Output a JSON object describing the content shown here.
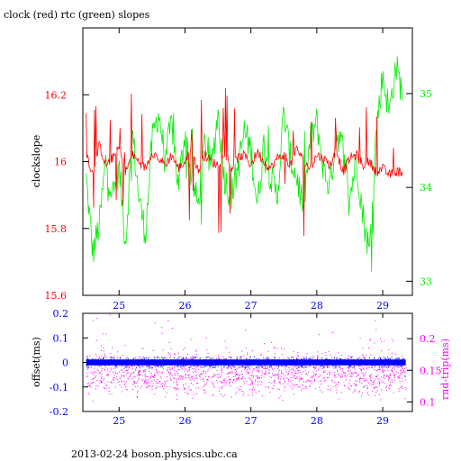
{
  "title": "clock (red) rtc (green) slopes",
  "footer": "2013-02-24 boson.physics.ubc.ca",
  "colors": {
    "red": "#ff0000",
    "green": "#00ee00",
    "blue": "#0000ff",
    "magenta": "#ff00ff",
    "axis": "#000000"
  },
  "chart_data": [
    {
      "type": "line",
      "panel": "top",
      "xlim": [
        24.45,
        29.45
      ],
      "x_ticks": [
        25,
        26,
        27,
        28,
        29
      ],
      "x_tick_labels": [
        "25",
        "26",
        "27",
        "28",
        "29"
      ],
      "y_left": {
        "label": "clockslope",
        "lim": [
          15.6,
          16.4
        ],
        "ticks": [
          15.6,
          15.8,
          16,
          16.2
        ],
        "tick_labels": [
          "15.6",
          "15.8",
          "16",
          "16.2"
        ],
        "color": "#ff0000"
      },
      "y_right": {
        "label": "",
        "lim": [
          32.85,
          35.7
        ],
        "ticks": [
          33,
          34,
          35
        ],
        "tick_labels": [
          "33",
          "34",
          "35"
        ],
        "color": "#00ee00"
      },
      "series": [
        {
          "axis": "right",
          "color": "#00ee00",
          "x": [
            24.5,
            24.6,
            24.7,
            24.8,
            24.9,
            25.0,
            25.1,
            25.2,
            25.3,
            25.4,
            25.5,
            25.6,
            25.7,
            25.8,
            25.9,
            26.0,
            26.1,
            26.2,
            26.3,
            26.4,
            26.5,
            26.6,
            26.7,
            26.8,
            26.9,
            27.0,
            27.1,
            27.2,
            27.3,
            27.4,
            27.5,
            27.6,
            27.7,
            27.8,
            27.9,
            28.0,
            28.1,
            28.2,
            28.3,
            28.4,
            28.5,
            28.6,
            28.7,
            28.8,
            28.9,
            29.0,
            29.1,
            29.2,
            29.3
          ],
          "y": [
            34.1,
            33.3,
            33.6,
            34.3,
            33.9,
            34.2,
            33.4,
            34.6,
            33.9,
            33.5,
            34.5,
            34.8,
            34.3,
            34.7,
            34.0,
            34.6,
            34.1,
            33.8,
            34.5,
            34.2,
            34.8,
            34.1,
            33.9,
            34.2,
            34.6,
            34.4,
            33.8,
            34.5,
            34.1,
            33.9,
            34.8,
            34.3,
            34.1,
            33.8,
            34.5,
            34.7,
            34.2,
            34.0,
            34.6,
            34.4,
            33.9,
            34.3,
            33.7,
            33.3,
            34.6,
            35.2,
            34.8,
            35.3,
            35.0
          ]
        },
        {
          "axis": "left",
          "color": "#ff0000",
          "x": [
            24.5,
            24.6,
            24.7,
            24.8,
            24.9,
            25.0,
            25.1,
            25.2,
            25.3,
            25.4,
            25.5,
            25.6,
            25.7,
            25.8,
            25.9,
            26.0,
            26.1,
            26.2,
            26.3,
            26.4,
            26.5,
            26.6,
            26.7,
            26.8,
            26.9,
            27.0,
            27.1,
            27.2,
            27.3,
            27.4,
            27.5,
            27.6,
            27.7,
            27.8,
            27.9,
            28.0,
            28.1,
            28.2,
            28.3,
            28.4,
            28.5,
            28.6,
            28.7,
            28.8,
            28.9,
            29.0,
            29.1,
            29.2,
            29.3
          ],
          "y": [
            16.03,
            15.96,
            16.05,
            15.99,
            16.01,
            16.04,
            15.97,
            16.02,
            16.0,
            15.98,
            16.03,
            16.01,
            15.99,
            16.02,
            15.98,
            16.0,
            16.04,
            15.97,
            16.02,
            16.0,
            15.99,
            16.03,
            15.98,
            16.01,
            16.02,
            15.99,
            16.03,
            16.0,
            15.98,
            16.01,
            16.02,
            15.99,
            16.04,
            16.0,
            15.98,
            16.02,
            16.01,
            15.99,
            16.03,
            15.97,
            16.01,
            16.02,
            15.99,
            16.0,
            15.97,
            15.98,
            15.96,
            15.97,
            15.97
          ]
        }
      ]
    },
    {
      "type": "scatter",
      "panel": "bottom",
      "xlim": [
        24.45,
        29.45
      ],
      "x_ticks": [
        25,
        26,
        27,
        28,
        29
      ],
      "x_tick_labels": [
        "25",
        "26",
        "27",
        "28",
        "29"
      ],
      "y_left": {
        "label": "offset(ms)",
        "lim": [
          -0.2,
          0.2
        ],
        "ticks": [
          -0.2,
          -0.1,
          0,
          0.1,
          0.2
        ],
        "tick_labels": [
          "-0.2",
          "-0.1",
          "0",
          "0.1",
          "0.2"
        ],
        "color": "#0000ff"
      },
      "y_right": {
        "label": "rnd-trip(ms)",
        "lim": [
          0.085,
          0.24
        ],
        "ticks": [
          0.1,
          0.15,
          0.2
        ],
        "tick_labels": [
          "0.1",
          "0.15",
          "0.2"
        ],
        "color": "#ff00ff"
      },
      "series": [
        {
          "axis": "left",
          "color": "#0000ff",
          "y_center": 0.0,
          "y_spread": 0.02
        },
        {
          "axis": "right",
          "color": "#ff00ff",
          "y_center": 0.145,
          "y_spread": 0.025
        }
      ]
    }
  ]
}
